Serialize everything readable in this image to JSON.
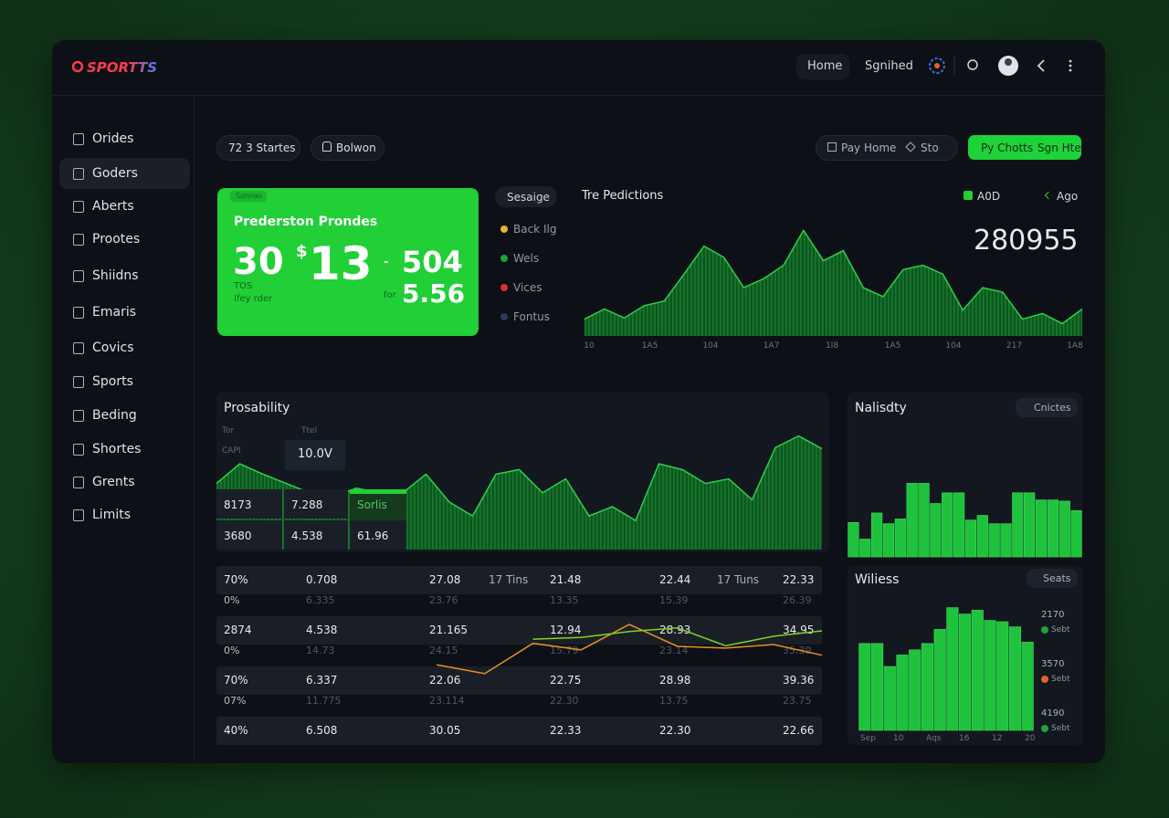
{
  "header": {
    "logo": "SPORTTS",
    "nav": [
      "Home",
      "Sgnihed"
    ]
  },
  "sidebar": [
    "Orides",
    "Goders",
    "Aberts",
    "Prootes",
    "Shiidns",
    "Emaris",
    "Covics",
    "Sports",
    "Beding",
    "Shortes",
    "Grents",
    "Limits"
  ],
  "toolbar": {
    "left": [
      "72 3 Startes",
      "Bolwon"
    ],
    "right": [
      "Pay Home",
      "Sto"
    ],
    "buttons": [
      "Py Chotts",
      "Sgn Hte"
    ]
  },
  "promo": {
    "tag": "Sonnas",
    "title": "Prederston Prondes",
    "big1": "30",
    "currency": "$",
    "big2": "13",
    "dash": "-",
    "big3": "504",
    "small1": "TOS",
    "small2": "Ifey rder",
    "small3": "for",
    "big4": "5.56"
  },
  "legend": {
    "title": "Sesaige",
    "items": [
      {
        "name": "Back Ilg",
        "color": "#e8b33a"
      },
      {
        "name": "Wels",
        "color": "#1fa33a"
      },
      {
        "name": "Vices",
        "color": "#d83030"
      },
      {
        "name": "Fontus",
        "color": "#2a3a50"
      }
    ]
  },
  "probability_table": {
    "headers": [
      "Tor",
      "Ttel"
    ],
    "row_label": "CAPI",
    "highlight": "10.0V",
    "cells": [
      [
        "8173",
        "7.288",
        "Sorlis"
      ],
      [
        "3680",
        "4.538",
        "61.96"
      ]
    ]
  },
  "table": {
    "rows": [
      {
        "main": [
          "70%",
          "0.708",
          "27.08",
          "17 Tins",
          "21.48",
          "22.44",
          "17 Tuns",
          "22.33"
        ],
        "sub": [
          "0%",
          "6.335",
          "23.76",
          "13.35",
          "15.39",
          "26.39"
        ]
      },
      {
        "main": [
          "2874",
          "4.538",
          "21.165",
          "12.94",
          "28.93",
          "34.95"
        ],
        "sub": [
          "0%",
          "14.73",
          "24.15",
          "15.79",
          "23.14",
          "35.39"
        ]
      },
      {
        "main": [
          "70%",
          "6.337",
          "22.06",
          "22.75",
          "28.98",
          "39.36"
        ],
        "sub": [
          "07%",
          "11.775",
          "23.114",
          "22.30",
          "13.75",
          "23.75"
        ]
      },
      {
        "main": [
          "40%",
          "6.508",
          "30.05",
          "22.33",
          "22.30",
          "22.66"
        ]
      }
    ]
  },
  "chart_data": [
    {
      "type": "area",
      "title": "Tre Pedictions",
      "controls": [
        "A0D",
        "Ago"
      ],
      "display_value": "280955",
      "xlabels": [
        "10",
        "1A5",
        "104",
        "1A7",
        "1I8",
        "1A5",
        "104",
        "217",
        "1A8"
      ],
      "values": [
        15,
        24,
        16,
        27,
        31,
        55,
        80,
        70,
        43,
        51,
        63,
        94,
        67,
        76,
        43,
        35,
        59,
        63,
        55,
        23,
        43,
        39,
        15,
        20,
        11,
        24
      ],
      "ylim": [
        0,
        100
      ],
      "color": "#2bd14a"
    },
    {
      "type": "area",
      "title": "Prosability",
      "values": [
        57,
        74,
        65,
        57,
        49,
        45,
        53,
        49,
        49,
        65,
        41,
        29,
        65,
        69,
        49,
        61,
        29,
        37,
        25,
        74,
        69,
        57,
        61,
        43,
        88,
        98,
        87
      ],
      "ylim": [
        0,
        100
      ],
      "color": "#2bd14a"
    },
    {
      "type": "bar",
      "title": "Nalisdty",
      "button": "Cnictes",
      "values": [
        29,
        15,
        37,
        28,
        32,
        62,
        62,
        45,
        54,
        54,
        31,
        35,
        28,
        28,
        54,
        54,
        48,
        48,
        47,
        39
      ],
      "ylim": [
        0,
        100
      ],
      "color": "#1fc23c"
    },
    {
      "type": "bar",
      "title": "Wiliess",
      "button": "Seats",
      "xlabels": [
        "Sep",
        "10",
        "Aqs",
        "16",
        "12",
        "20"
      ],
      "legend": [
        {
          "value": "2170",
          "label": "Sebt",
          "color": "#1fa33a"
        },
        {
          "value": "3570",
          "label": "Sebt",
          "color": "#e8602a"
        },
        {
          "value": "4190",
          "label": "Sebt",
          "color": "#1fa33a"
        }
      ],
      "values": [
        68,
        68,
        50,
        59,
        63,
        68,
        79,
        96,
        91,
        94,
        86,
        85,
        81,
        69
      ],
      "ylim": [
        0,
        100
      ],
      "color": "#1fc23c"
    },
    {
      "type": "line",
      "ylim": [
        0,
        100
      ],
      "series": [
        {
          "color": "#e8901f",
          "values": [
            26,
            11,
            62,
            51,
            94,
            57,
            54,
            60,
            42
          ]
        },
        {
          "color": "#7ed321",
          "values": [
            null,
            null,
            69,
            72,
            82,
            88,
            58,
            74,
            83
          ]
        }
      ]
    }
  ]
}
